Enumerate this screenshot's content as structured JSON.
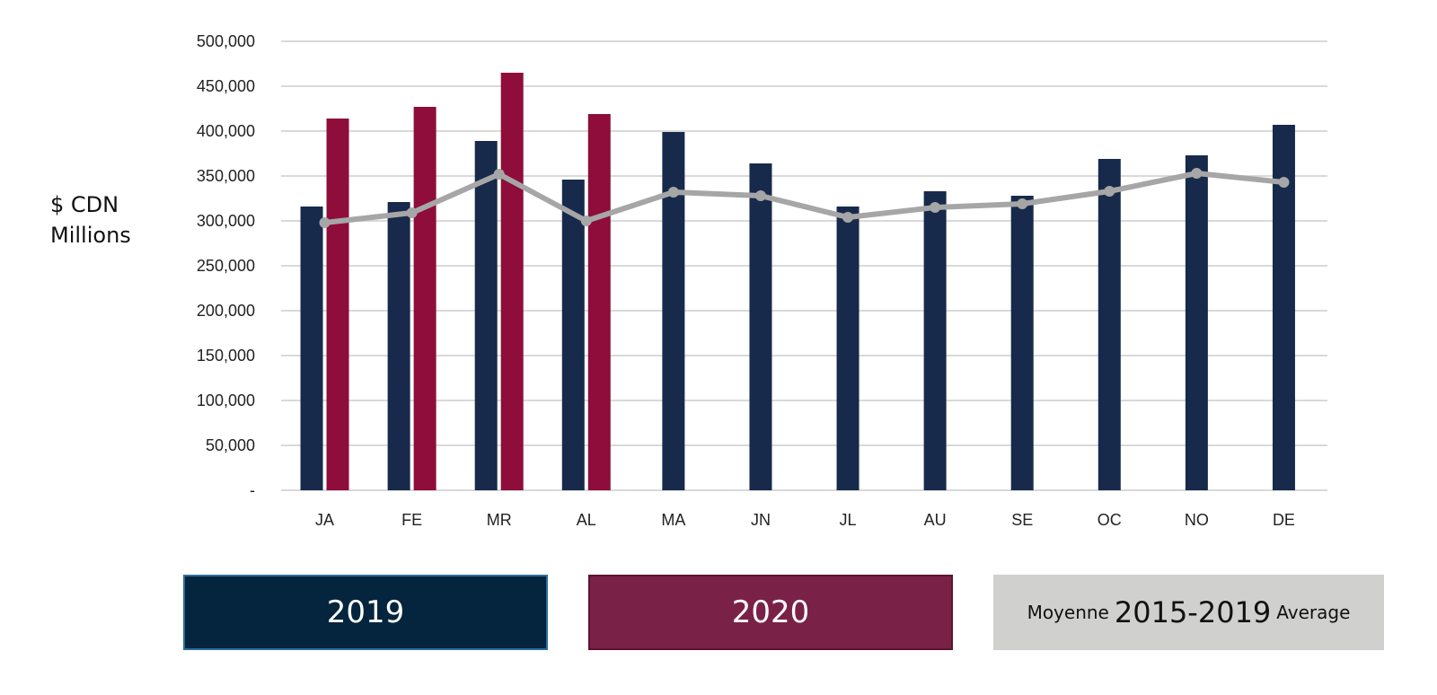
{
  "y_axis_title_line1": "$ CDN",
  "y_axis_title_line2": "Millions",
  "legend": {
    "series_2019": "2019",
    "series_2020": "2020",
    "avg_prefix": "Moyenne",
    "avg_years": "2015-2019",
    "avg_suffix": "Average"
  },
  "colors": {
    "series_2019": "#172a4c",
    "series_2020": "#8e0d3a",
    "average": "#a6a6a6",
    "legend_2019_bg": "#04253d",
    "legend_2020_bg": "#7a2148",
    "legend_avg_bg": "#d0d0ce",
    "gridline": "#d9d9d9"
  },
  "chart_data": {
    "type": "bar",
    "categories": [
      "JA",
      "FE",
      "MR",
      "AL",
      "MA",
      "JN",
      "JL",
      "AU",
      "SE",
      "OC",
      "NO",
      "DE"
    ],
    "ylim": [
      0,
      500000
    ],
    "ytick_values": [
      0,
      50000,
      100000,
      150000,
      200000,
      250000,
      300000,
      350000,
      400000,
      450000,
      500000
    ],
    "ytick_labels": [
      "-",
      "50,000",
      "100,000",
      "150,000",
      "200,000",
      "250,000",
      "300,000",
      "350,000",
      "400,000",
      "450,000",
      "500,000"
    ],
    "ylabel": "$ CDN Millions",
    "grid": true,
    "series": [
      {
        "name": "2019",
        "kind": "bar",
        "values": [
          316000,
          321000,
          389000,
          346000,
          399000,
          364000,
          316000,
          333000,
          328000,
          369000,
          373000,
          407000
        ]
      },
      {
        "name": "2020",
        "kind": "bar",
        "values": [
          414000,
          427000,
          465000,
          419000,
          null,
          null,
          null,
          null,
          null,
          null,
          null,
          null
        ]
      },
      {
        "name": "Moyenne 2015-2019 Average",
        "kind": "line",
        "values": [
          298000,
          309000,
          352000,
          300000,
          332000,
          328000,
          304000,
          315000,
          319000,
          333000,
          353000,
          343000
        ]
      }
    ]
  }
}
